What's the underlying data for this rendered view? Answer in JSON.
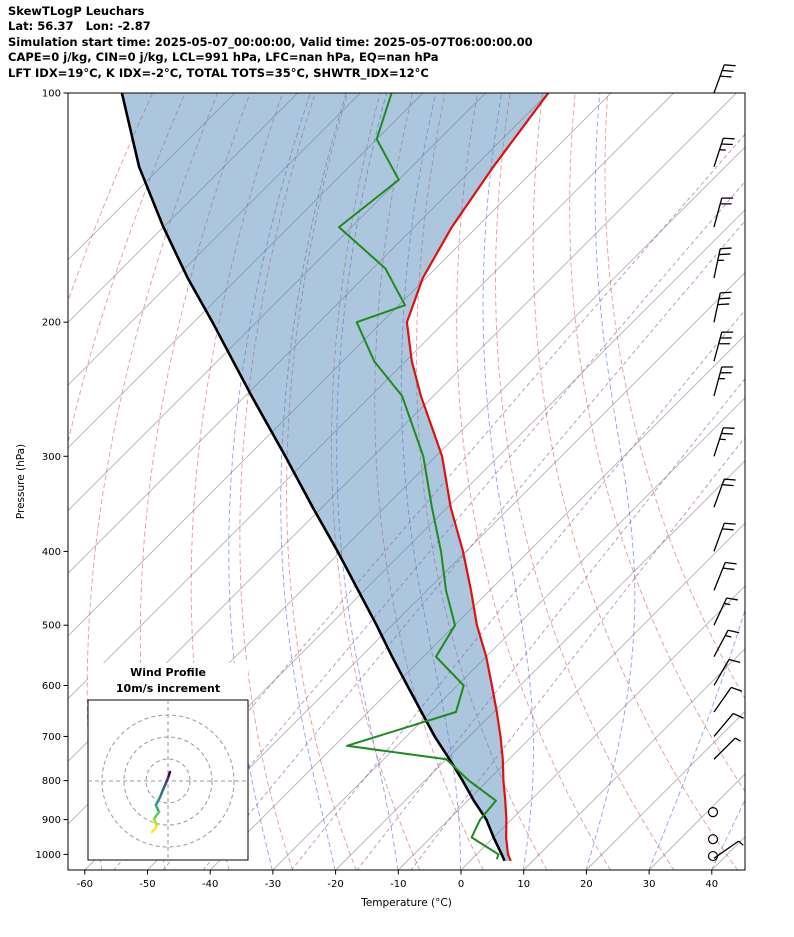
{
  "header": {
    "lines": [
      "SkewTLogP Leuchars",
      "Lat: 56.37   Lon: -2.87",
      "Simulation start time: 2025-05-07_00:00:00, Valid time: 2025-05-07T06:00:00.00",
      "CAPE=0 j/kg, CIN=0 j/kg, LCL=991 hPa, LFC=nan hPa, EQ=nan hPa",
      "LFT IDX=19°C, K IDX=-2°C, TOTAL TOTS=35°C, SHWTR_IDX=12°C"
    ]
  },
  "chart_data": {
    "type": "skewt-logp",
    "station": "Leuchars",
    "pressure_axis": {
      "label": "Pressure (hPa)",
      "ticks": [
        100,
        200,
        300,
        400,
        500,
        600,
        700,
        800,
        900,
        1000
      ],
      "range": [
        100,
        1050
      ],
      "scale": "log"
    },
    "temperature_axis": {
      "label": "Temperature (°C)",
      "ticks": [
        -60,
        -50,
        -40,
        -30,
        -20,
        -10,
        0,
        10,
        20,
        30,
        40
      ],
      "range": [
        -62.7,
        45
      ]
    },
    "skew_deg": 45,
    "background": {
      "isotherms_c": {
        "min": -160,
        "max": 40,
        "step": 10,
        "color": "#b3b3b3"
      },
      "dry_adiabats_theta_k": [
        193,
        203,
        213,
        223,
        233,
        243,
        253,
        263,
        273,
        283,
        293,
        303,
        313,
        323,
        333
      ],
      "dry_adiabat_color": "rgba(205,70,70,0.55)",
      "moist_adiabat_start_c": [
        -30,
        -20,
        -10,
        0,
        10,
        20,
        30,
        40
      ],
      "moist_adiabat_color": "rgba(60,80,215,0.55)",
      "mixing_ratio_g_kg": [
        0.02,
        0.05,
        0.1,
        0.4,
        1,
        2
      ],
      "mixing_ratio_color": "rgba(150,60,170,0.6)"
    },
    "temperature_profile": {
      "color": "#e01010",
      "pressure_hpa": [
        1020,
        1000,
        950,
        900,
        850,
        800,
        750,
        700,
        650,
        600,
        550,
        500,
        450,
        400,
        350,
        300,
        250,
        225,
        200,
        175,
        150,
        125,
        100
      ],
      "temp_c": [
        6.5,
        5,
        2,
        -0.8,
        -4,
        -7.5,
        -11,
        -15,
        -19.5,
        -24.5,
        -30,
        -36.5,
        -43,
        -50.5,
        -59.5,
        -69,
        -82,
        -89,
        -96,
        -100.5,
        -104,
        -107,
        -110
      ]
    },
    "dewpoint_profile": {
      "color": "#1f8a1f",
      "pressure_hpa": [
        1015,
        1000,
        950,
        900,
        850,
        800,
        750,
        720,
        650,
        600,
        550,
        500,
        450,
        400,
        350,
        300,
        250,
        225,
        200,
        190,
        170,
        150,
        130,
        115,
        100
      ],
      "temp_c": [
        4,
        3.5,
        -3.5,
        -5,
        -5.5,
        -13,
        -20,
        -38,
        -26,
        -29,
        -38,
        -40,
        -47,
        -54,
        -62.5,
        -72,
        -85,
        -95,
        -104,
        -99,
        -108,
        -122,
        -120,
        -130,
        -135
      ]
    },
    "reference_line": {
      "color": "#000000",
      "pressure_hpa": [
        1020,
        1000,
        950,
        900,
        850,
        800,
        750,
        700,
        650,
        600,
        550,
        500,
        450,
        400,
        350,
        300,
        250,
        225,
        200,
        175,
        150,
        125,
        100
      ],
      "temp_c": [
        5.5,
        4,
        0,
        -4,
        -9,
        -14,
        -19.5,
        -25.5,
        -31.5,
        -38,
        -45,
        -52.5,
        -61,
        -70.5,
        -81.5,
        -94,
        -109,
        -117.5,
        -127,
        -138,
        -150,
        -163.5,
        -178
      ]
    },
    "shading": {
      "color": "rgba(70,130,180,0.45)",
      "between": [
        "reference_line",
        "temperature_profile"
      ]
    },
    "wind_barbs": {
      "full_barb_ms": 5,
      "calm_circle_pressures": [
        1005,
        955,
        880
      ],
      "levels": [
        {
          "pressure_hpa": 1012,
          "speed_ms": 2.5,
          "direction_deg": 55
        },
        {
          "pressure_hpa": 750,
          "speed_ms": 2.5,
          "direction_deg": 45
        },
        {
          "pressure_hpa": 700,
          "speed_ms": 5,
          "direction_deg": 40
        },
        {
          "pressure_hpa": 650,
          "speed_ms": 5,
          "direction_deg": 35
        },
        {
          "pressure_hpa": 600,
          "speed_ms": 5,
          "direction_deg": 30
        },
        {
          "pressure_hpa": 550,
          "speed_ms": 7.5,
          "direction_deg": 28
        },
        {
          "pressure_hpa": 500,
          "speed_ms": 7.5,
          "direction_deg": 25
        },
        {
          "pressure_hpa": 450,
          "speed_ms": 10,
          "direction_deg": 22
        },
        {
          "pressure_hpa": 400,
          "speed_ms": 10,
          "direction_deg": 20
        },
        {
          "pressure_hpa": 350,
          "speed_ms": 10,
          "direction_deg": 20
        },
        {
          "pressure_hpa": 300,
          "speed_ms": 12.5,
          "direction_deg": 18
        },
        {
          "pressure_hpa": 250,
          "speed_ms": 12.5,
          "direction_deg": 15
        },
        {
          "pressure_hpa": 225,
          "speed_ms": 15,
          "direction_deg": 15
        },
        {
          "pressure_hpa": 200,
          "speed_ms": 15,
          "direction_deg": 12
        },
        {
          "pressure_hpa": 175,
          "speed_ms": 12.5,
          "direction_deg": 12
        },
        {
          "pressure_hpa": 150,
          "speed_ms": 10,
          "direction_deg": 15
        },
        {
          "pressure_hpa": 125,
          "speed_ms": 12.5,
          "direction_deg": 18
        },
        {
          "pressure_hpa": 100,
          "speed_ms": 15,
          "direction_deg": 20
        }
      ]
    },
    "hodograph": {
      "title_lines": [
        "Wind Profile",
        "10m/s increment"
      ],
      "ring_interval_ms": 10,
      "rings_ms": [
        10,
        20,
        30
      ],
      "trace_uv_ms": [
        [
          0.9,
          4.1
        ],
        [
          0,
          1.4
        ],
        [
          -0.9,
          -0.9
        ],
        [
          -2.3,
          -4.1
        ],
        [
          -3.6,
          -7.3
        ],
        [
          -5.5,
          -10.9
        ],
        [
          -4.1,
          -14.1
        ],
        [
          -6.4,
          -17.3
        ],
        [
          -5,
          -20.5
        ],
        [
          -7.3,
          -23.2
        ]
      ],
      "segment_colors": [
        "#440154",
        "#472d7b",
        "#3b528b",
        "#2c728e",
        "#21918c",
        "#28ae80",
        "#5ec962",
        "#addc30",
        "#fde725"
      ]
    }
  }
}
